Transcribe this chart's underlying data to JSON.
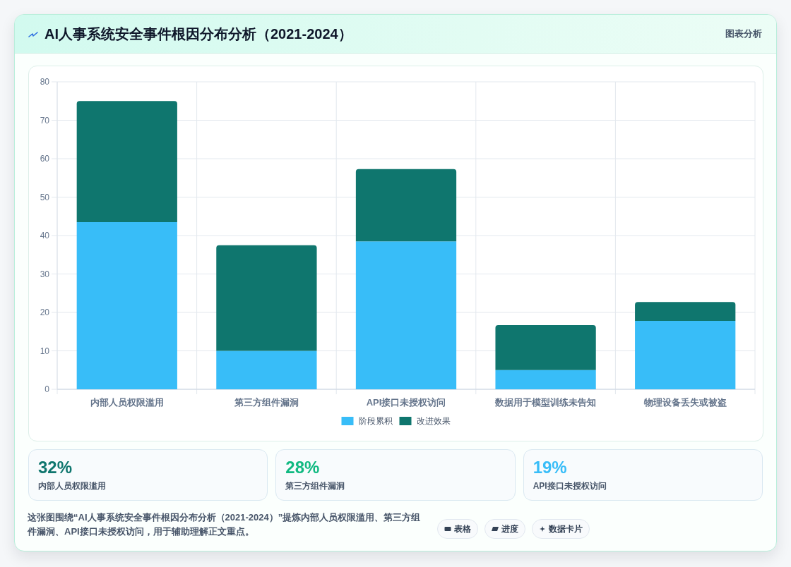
{
  "chart_data": [
    {
      "type": "bar",
      "title": "AI人事系统安全事件根因分布分析（2021-2024）",
      "categories": [
        "内部人员权限滥用",
        "第三方组件漏洞",
        "API接口未授权访问",
        "数据用于模型训练未告知",
        "物理设备丢失或被盗"
      ],
      "series": [
        {
          "name": "阶段累积",
          "color": "#38bdf8",
          "values": [
            43.5,
            10,
            38.5,
            5,
            17.8
          ]
        },
        {
          "name": "改进效果",
          "color": "#0f766e",
          "values": [
            31.5,
            27.5,
            18.8,
            11.7,
            4.9
          ]
        }
      ],
      "stacked": true,
      "ylim": [
        0,
        80
      ],
      "yticks": [
        0,
        10,
        20,
        30,
        40,
        50,
        60,
        70,
        80
      ],
      "grid": true,
      "legend": "bottom",
      "annotations": [
        "图表分析",
        "这张图围绕“AI人事系统安全事件根因分布分析（2021-2024）”提炼内部人员权限滥用、第三方组件漏洞、API接口未授权访问，用于辅助理解正文重点。",
        "表格",
        "进度",
        "数据卡片"
      ]
    },
    {
      "type": "other",
      "annotations": [
        "32%",
        "内部人员权限滥用",
        "28%",
        "第三方组件漏洞",
        "19%",
        "API接口未授权访问"
      ]
    }
  ]
}
